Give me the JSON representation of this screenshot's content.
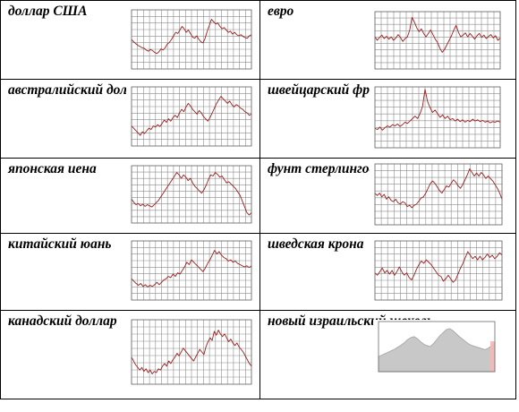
{
  "colors": {
    "series": "#9c1e1e",
    "grid": "#8c8c8c",
    "area": "#c8c8c8",
    "border": "#000000"
  },
  "chart_data": [
    {
      "type": "line",
      "label": "доллар США",
      "values": [
        5.0,
        4.6,
        4.3,
        4.0,
        3.8,
        3.6,
        3.5,
        3.2,
        3.0,
        3.3,
        3.1,
        2.8,
        2.6,
        2.9,
        3.4,
        3.2,
        3.6,
        4.2,
        4.5,
        5.0,
        5.6,
        6.2,
        6.0,
        6.6,
        7.2,
        6.8,
        6.2,
        6.6,
        6.0,
        5.4,
        5.2,
        5.6,
        5.0,
        4.6,
        4.4,
        5.2,
        6.4,
        7.4,
        8.4,
        8.0,
        7.6,
        7.8,
        7.2,
        6.8,
        7.0,
        6.6,
        6.2,
        6.4,
        5.9,
        6.2,
        5.8,
        5.6,
        5.8,
        5.5,
        5.3,
        5.2,
        5.6,
        5.8
      ]
    },
    {
      "type": "line",
      "label": "евро",
      "values": [
        5.6,
        5.0,
        5.5,
        5.9,
        5.3,
        5.7,
        5.2,
        5.6,
        5.0,
        5.4,
        6.0,
        5.5,
        4.8,
        5.3,
        5.6,
        6.8,
        9.0,
        8.2,
        7.2,
        6.5,
        7.0,
        6.2,
        5.6,
        6.2,
        6.8,
        6.0,
        5.2,
        4.6,
        3.6,
        2.9,
        3.4,
        4.2,
        5.0,
        5.8,
        6.8,
        7.6,
        6.4,
        5.6,
        5.9,
        6.3,
        5.6,
        6.2,
        5.7,
        5.2,
        5.8,
        6.2,
        5.5,
        5.9,
        5.3,
        5.7,
        6.0,
        5.4,
        5.8,
        5.0,
        5.4
      ]
    },
    {
      "type": "line",
      "label": "австралийский доллар",
      "values": [
        3.4,
        3.0,
        2.6,
        2.2,
        1.8,
        2.4,
        2.1,
        2.6,
        3.0,
        2.8,
        3.4,
        3.2,
        3.6,
        3.3,
        3.8,
        4.4,
        4.0,
        4.6,
        4.2,
        4.8,
        5.2,
        4.8,
        5.6,
        6.2,
        5.8,
        6.6,
        7.2,
        6.8,
        6.2,
        5.8,
        5.4,
        6.0,
        5.6,
        5.0,
        4.6,
        4.2,
        4.8,
        5.6,
        6.4,
        7.2,
        7.8,
        8.4,
        8.0,
        7.6,
        7.2,
        7.6,
        7.0,
        6.6,
        7.0,
        6.8,
        6.4,
        6.2,
        5.8,
        5.6,
        5.2,
        5.4
      ]
    },
    {
      "type": "line",
      "label": "швейцарский франк",
      "values": [
        3.2,
        3.0,
        3.4,
        2.9,
        3.3,
        3.6,
        3.4,
        3.8,
        3.6,
        3.9,
        3.5,
        3.8,
        4.2,
        4.0,
        4.4,
        4.8,
        5.2,
        4.8,
        5.6,
        6.8,
        9.6,
        7.6,
        6.6,
        5.8,
        6.2,
        5.6,
        5.0,
        5.4,
        4.8,
        5.2,
        4.6,
        4.8,
        4.4,
        4.7,
        4.3,
        4.6,
        4.2,
        4.5,
        4.3,
        4.7,
        4.4,
        4.6,
        4.3,
        4.5,
        4.2,
        4.4,
        4.1,
        4.3,
        4.2,
        4.4,
        4.2
      ]
    },
    {
      "type": "line",
      "label": "японская иена",
      "values": [
        4.2,
        3.6,
        3.2,
        3.4,
        3.0,
        3.3,
        2.9,
        3.2,
        3.0,
        2.8,
        3.2,
        3.6,
        4.0,
        4.6,
        5.2,
        5.8,
        6.4,
        7.0,
        7.6,
        8.2,
        8.8,
        8.4,
        7.8,
        8.4,
        8.0,
        7.4,
        7.8,
        7.0,
        6.4,
        6.0,
        5.6,
        5.2,
        5.8,
        6.6,
        7.6,
        8.4,
        8.2,
        8.8,
        8.5,
        8.0,
        8.2,
        7.6,
        7.0,
        7.2,
        6.8,
        6.4,
        6.0,
        5.4,
        4.8,
        3.8,
        2.8,
        1.8,
        1.4,
        1.8
      ]
    },
    {
      "type": "line",
      "label": "фунт стерлингов",
      "values": [
        5.2,
        4.8,
        5.2,
        4.6,
        5.0,
        4.2,
        4.6,
        4.0,
        3.8,
        4.2,
        3.6,
        3.4,
        3.8,
        3.6,
        3.0,
        3.2,
        2.8,
        3.2,
        3.4,
        3.9,
        4.4,
        4.6,
        5.2,
        6.0,
        6.8,
        7.2,
        6.8,
        6.2,
        5.6,
        5.2,
        5.8,
        6.4,
        6.2,
        6.8,
        7.4,
        7.0,
        6.4,
        6.0,
        6.6,
        7.4,
        8.2,
        9.2,
        8.6,
        8.0,
        8.5,
        8.0,
        8.6,
        8.2,
        7.6,
        8.0,
        7.6,
        7.2,
        6.6,
        6.0,
        5.2,
        4.2
      ]
    },
    {
      "type": "line",
      "label": "китайский юань",
      "values": [
        3.6,
        3.2,
        2.8,
        2.5,
        2.8,
        2.3,
        2.6,
        2.2,
        2.5,
        2.3,
        2.6,
        3.0,
        2.6,
        3.0,
        3.4,
        3.6,
        4.0,
        3.8,
        4.4,
        4.0,
        4.6,
        4.4,
        5.0,
        5.6,
        6.4,
        6.0,
        6.8,
        6.4,
        6.0,
        5.6,
        5.2,
        4.8,
        5.4,
        6.2,
        6.8,
        7.6,
        8.4,
        7.8,
        8.2,
        7.6,
        7.2,
        7.0,
        6.6,
        6.8,
        6.4,
        6.6,
        6.2,
        6.0,
        5.8,
        5.6,
        5.8,
        5.5,
        5.8
      ]
    },
    {
      "type": "line",
      "label": "шведская крона",
      "values": [
        4.6,
        4.2,
        4.8,
        5.4,
        4.6,
        5.0,
        4.4,
        5.0,
        4.2,
        4.8,
        5.6,
        4.8,
        4.2,
        4.6,
        3.8,
        3.4,
        4.2,
        5.2,
        6.0,
        6.6,
        6.2,
        6.8,
        6.4,
        6.0,
        5.4,
        4.8,
        4.2,
        4.0,
        3.2,
        3.6,
        4.2,
        3.6,
        3.0,
        3.4,
        4.4,
        5.4,
        6.2,
        7.2,
        8.2,
        7.6,
        7.0,
        7.4,
        6.8,
        7.4,
        6.8,
        7.2,
        7.8,
        7.2,
        7.6,
        7.0,
        7.4,
        8.0,
        7.6
      ]
    },
    {
      "type": "line",
      "label": "канадский доллар",
      "values": [
        4.2,
        3.6,
        3.0,
        2.6,
        2.2,
        2.6,
        2.0,
        2.4,
        1.8,
        2.2,
        1.6,
        2.0,
        1.8,
        2.4,
        2.2,
        2.8,
        3.2,
        2.8,
        3.6,
        3.2,
        3.8,
        4.2,
        4.8,
        4.4,
        5.0,
        5.6,
        5.2,
        4.8,
        4.4,
        4.0,
        3.6,
        4.2,
        4.8,
        5.4,
        5.0,
        4.6,
        5.8,
        6.6,
        7.2,
        6.8,
        8.2,
        7.6,
        8.4,
        7.8,
        7.4,
        7.8,
        7.2,
        6.6,
        7.0,
        6.4,
        6.0,
        6.4,
        5.8,
        5.4,
        5.0,
        4.4,
        3.8,
        3.2,
        2.8
      ]
    },
    {
      "type": "area",
      "label": "новый израильский шекель",
      "values": [
        3.0,
        3.3,
        3.6,
        3.9,
        4.2,
        4.5,
        4.9,
        5.3,
        5.8,
        6.4,
        6.8,
        7.0,
        6.6,
        6.0,
        5.5,
        5.2,
        5.0,
        5.6,
        6.4,
        7.2,
        7.8,
        8.4,
        8.6,
        8.2,
        7.6,
        7.0,
        6.5,
        6.0,
        5.5,
        5.2,
        5.0,
        4.8,
        4.6,
        4.4,
        4.7,
        5.2,
        5.8
      ]
    }
  ]
}
